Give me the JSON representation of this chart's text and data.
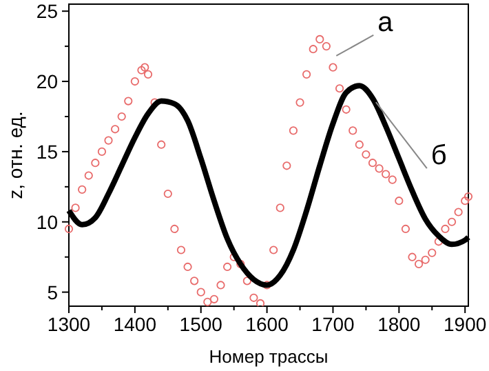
{
  "chart_data": {
    "type": "line",
    "xlabel": "Номер трассы",
    "ylabel": "z, отн. ед.",
    "xlim": [
      1300,
      1905
    ],
    "ylim": [
      4,
      25.5
    ],
    "xticks": [
      1300,
      {
        "value": 1350,
        "label": null
      },
      1400,
      {
        "value": 1450,
        "label": null
      },
      1500,
      {
        "value": 1550,
        "label": null
      },
      1600,
      {
        "value": 1650,
        "label": null
      },
      1700,
      {
        "value": 1750,
        "label": null
      },
      1800,
      {
        "value": 1850,
        "label": null
      },
      1900
    ],
    "yticks": [
      5,
      {
        "value": 7.5,
        "label": null
      },
      10,
      {
        "value": 12.5,
        "label": null
      },
      15,
      {
        "value": 17.5,
        "label": null
      },
      20,
      {
        "value": 22.5,
        "label": null
      },
      25
    ],
    "grid": false,
    "series": [
      {
        "name": "а",
        "type": "scatter",
        "marker": "circle",
        "color": "#e86a6a",
        "x": [
          1300,
          1310,
          1320,
          1330,
          1340,
          1350,
          1360,
          1370,
          1380,
          1390,
          1400,
          1410,
          1415,
          1420,
          1430,
          1440,
          1450,
          1460,
          1470,
          1480,
          1490,
          1500,
          1510,
          1520,
          1530,
          1540,
          1550,
          1560,
          1570,
          1580,
          1590,
          1600,
          1610,
          1620,
          1630,
          1640,
          1650,
          1660,
          1670,
          1680,
          1690,
          1700,
          1710,
          1720,
          1730,
          1740,
          1750,
          1760,
          1770,
          1780,
          1790,
          1800,
          1810,
          1820,
          1830,
          1840,
          1850,
          1860,
          1870,
          1880,
          1890,
          1900,
          1905
        ],
        "values": [
          9.5,
          11,
          12.3,
          13.3,
          14.2,
          15,
          15.8,
          16.6,
          17.5,
          18.6,
          20,
          20.8,
          21,
          20.5,
          18.5,
          15.5,
          12,
          9.5,
          8,
          6.8,
          5.8,
          5,
          4.3,
          4.5,
          5.5,
          6.8,
          7.5,
          7,
          5.8,
          4.6,
          4.2,
          5.5,
          8,
          11,
          14,
          16.5,
          18.5,
          20.5,
          22.3,
          23,
          22.5,
          21,
          19.5,
          18,
          16.5,
          15.5,
          14.8,
          14.2,
          13.8,
          13.4,
          13,
          11.5,
          9.5,
          7.5,
          7,
          7.3,
          7.8,
          8.6,
          9.5,
          10,
          10.7,
          11.5,
          11.8
        ]
      },
      {
        "name": "б",
        "marker": "none",
        "line_style": "solid",
        "color": "#000000",
        "x": [
          1300,
          1320,
          1340,
          1360,
          1380,
          1400,
          1420,
          1440,
          1460,
          1480,
          1500,
          1520,
          1540,
          1560,
          1580,
          1600,
          1620,
          1640,
          1660,
          1680,
          1700,
          1720,
          1740,
          1760,
          1780,
          1800,
          1820,
          1840,
          1860,
          1880,
          1900,
          1905
        ],
        "values": [
          10.8,
          9.8,
          10.3,
          12,
          14,
          16,
          17.7,
          18.6,
          18.4,
          17.2,
          14.5,
          11.5,
          8.8,
          7,
          5.9,
          5.5,
          6.2,
          8,
          10.8,
          14,
          17,
          19.2,
          19.7,
          18.8,
          16.8,
          14.5,
          12.2,
          10.2,
          9,
          8.4,
          8.7,
          8.9
        ]
      }
    ]
  }
}
